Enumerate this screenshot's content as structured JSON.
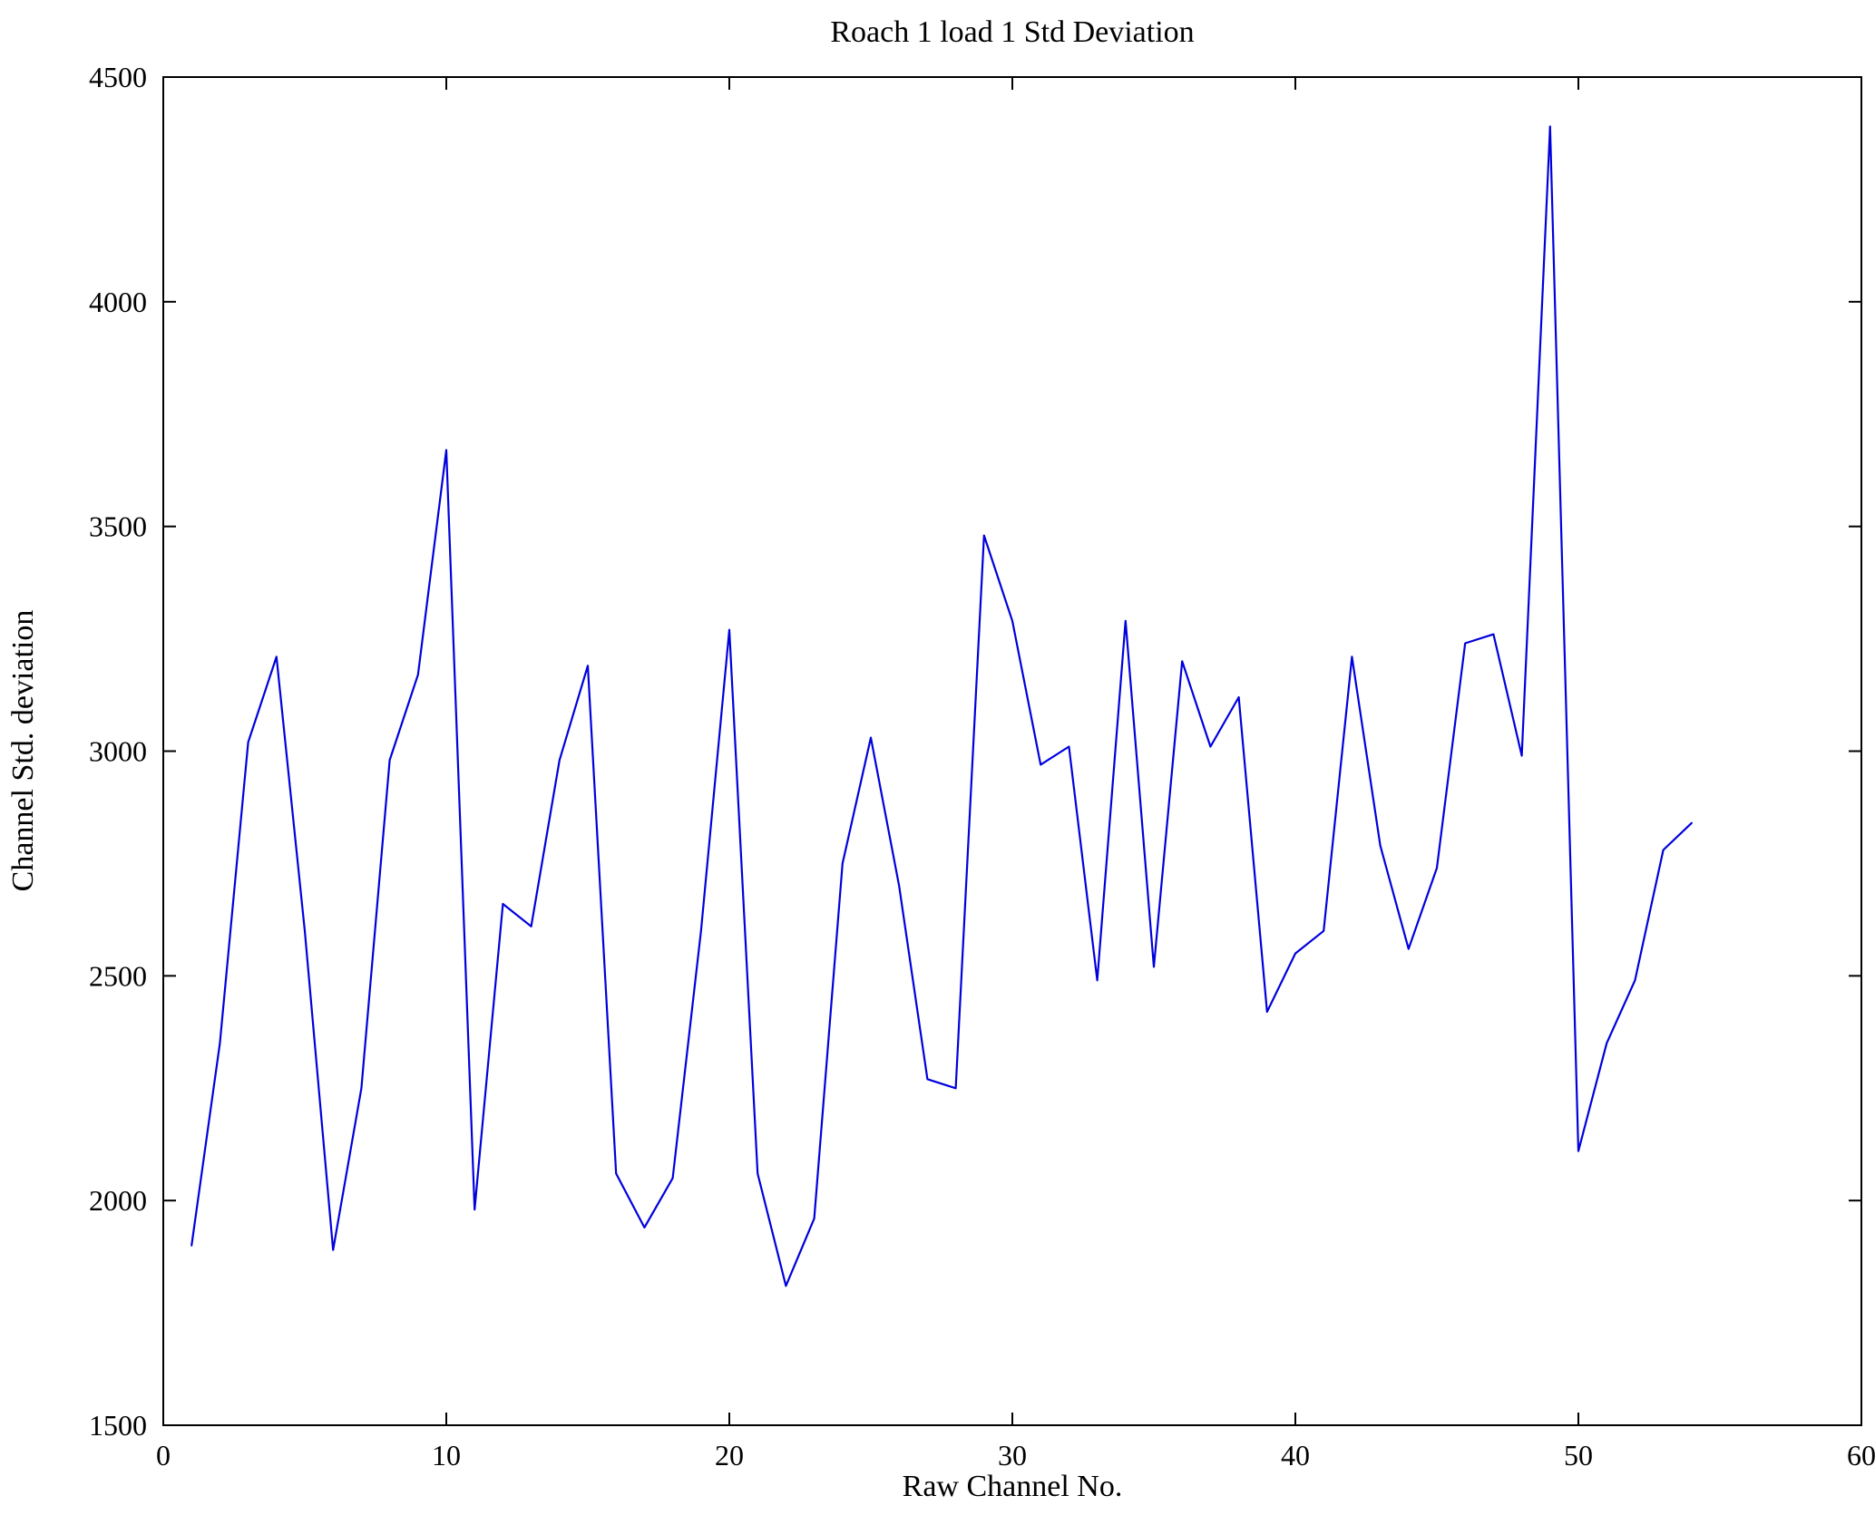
{
  "chart_data": {
    "type": "line",
    "title": "Roach 1 load 1 Std Deviation",
    "xlabel": "Raw Channel No.",
    "ylabel": "Channel Std. deviation",
    "xlim": [
      0,
      60
    ],
    "ylim": [
      1500,
      4500
    ],
    "xticks": [
      0,
      10,
      20,
      30,
      40,
      50,
      60
    ],
    "yticks": [
      1500,
      2000,
      2500,
      3000,
      3500,
      4000,
      4500
    ],
    "grid": false,
    "legend": "none",
    "line_color": "#0000dd",
    "x": [
      1,
      2,
      3,
      4,
      5,
      6,
      7,
      8,
      9,
      10,
      11,
      12,
      13,
      14,
      15,
      16,
      17,
      18,
      19,
      20,
      21,
      22,
      23,
      24,
      25,
      26,
      27,
      28,
      29,
      30,
      31,
      32,
      33,
      34,
      35,
      36,
      37,
      38,
      39,
      40,
      41,
      42,
      43,
      44,
      45,
      46,
      47,
      48,
      49,
      50,
      51,
      52,
      53,
      54
    ],
    "values": [
      1900,
      2350,
      3020,
      3210,
      2600,
      1890,
      2250,
      2980,
      3170,
      3670,
      1980,
      2660,
      2610,
      2980,
      3190,
      2060,
      1940,
      2050,
      2600,
      3270,
      2060,
      1810,
      1960,
      2750,
      3030,
      2700,
      2270,
      2250,
      3480,
      3290,
      2970,
      3010,
      2490,
      3290,
      2520,
      3200,
      3010,
      3120,
      2420,
      2550,
      2600,
      3210,
      2790,
      2560,
      2740,
      3240,
      3260,
      2990,
      4390,
      2110,
      2350,
      2490,
      2780,
      2840
    ]
  }
}
